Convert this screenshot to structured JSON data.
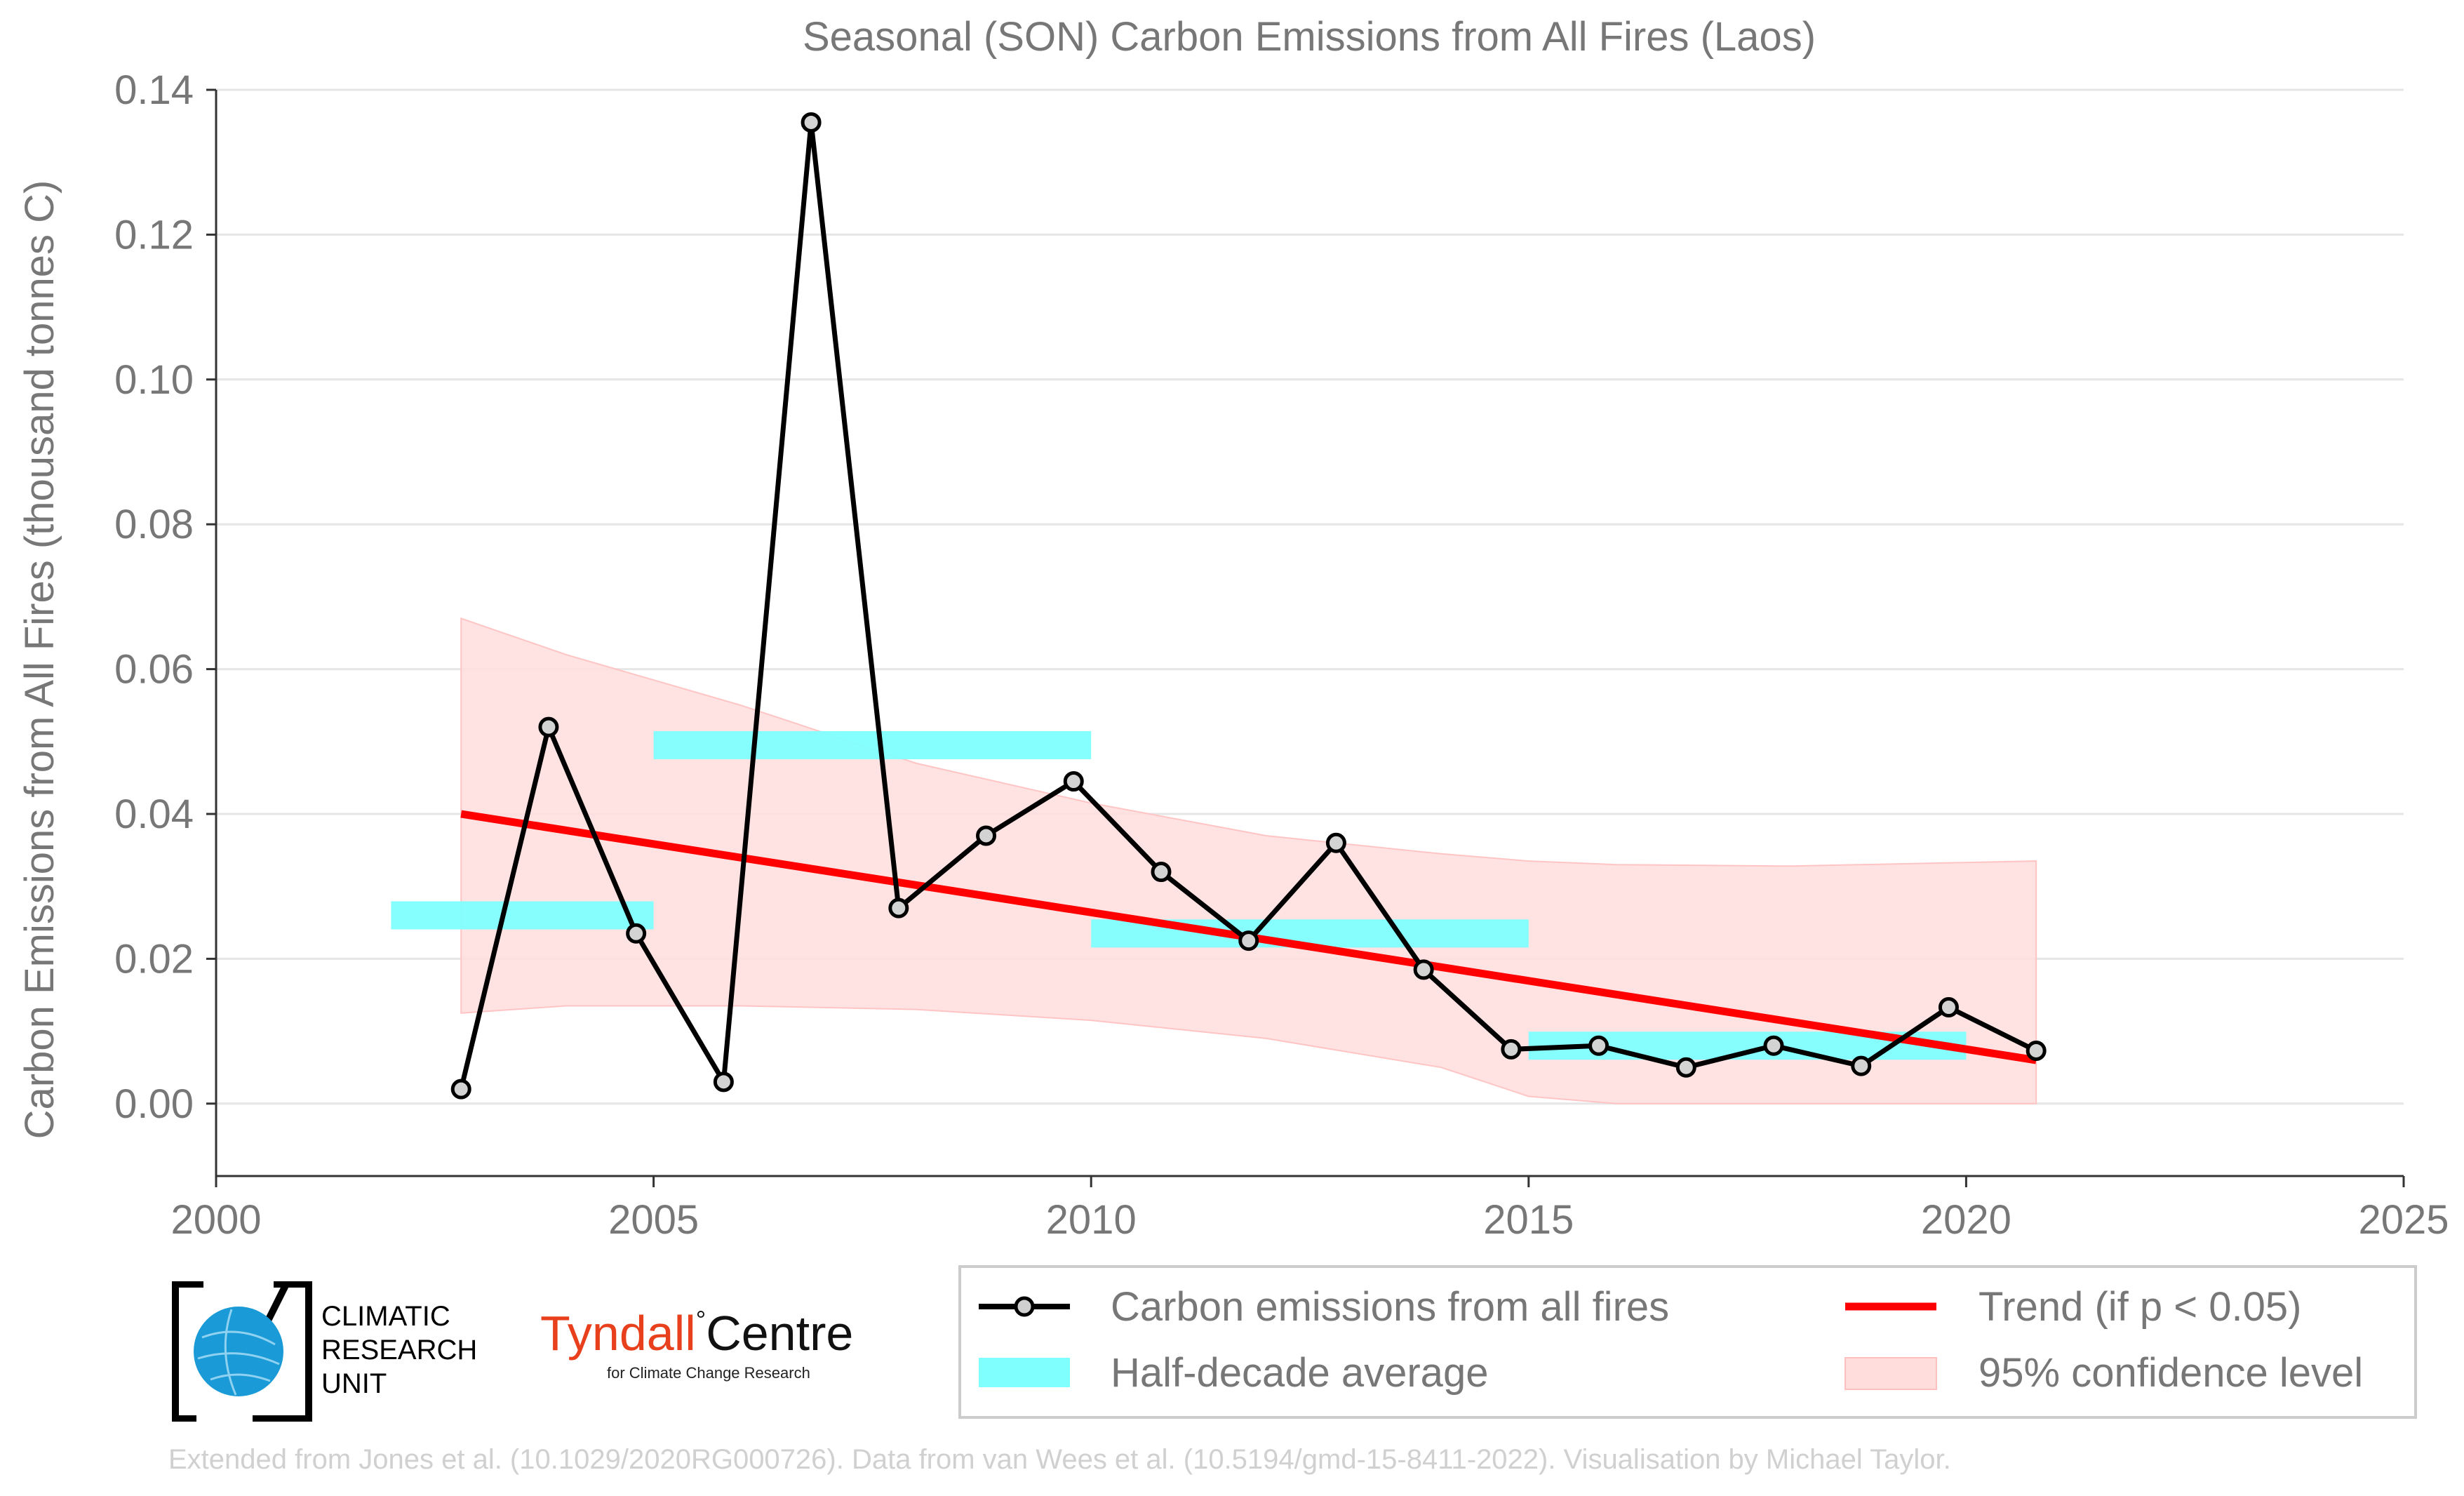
{
  "chart_data": {
    "type": "line",
    "title": "Seasonal (SON) Carbon Emissions from All Fires (Laos)",
    "ylabel": "Carbon Emissions from All Fires (thousand tonnes C)",
    "xlabel": "",
    "xlim": [
      2000,
      2025
    ],
    "ylim": [
      -0.01,
      0.14
    ],
    "x_ticks": [
      "2000",
      "2005",
      "2010",
      "2015",
      "2020",
      "2025"
    ],
    "y_ticks": [
      "0.00",
      "0.02",
      "0.04",
      "0.06",
      "0.08",
      "0.10",
      "0.12",
      "0.14"
    ],
    "grid": true,
    "series": [
      {
        "name": "Carbon emissions from all fires",
        "color": "#000000",
        "x": [
          2002.8,
          2003.8,
          2004.8,
          2005.8,
          2006.8,
          2007.8,
          2008.8,
          2009.8,
          2010.8,
          2011.8,
          2012.8,
          2013.8,
          2014.8,
          2015.8,
          2016.8,
          2017.8,
          2018.8,
          2019.8,
          2020.8
        ],
        "y": [
          0.002,
          0.052,
          0.0235,
          0.003,
          0.1355,
          0.027,
          0.037,
          0.0445,
          0.032,
          0.0225,
          0.036,
          0.0185,
          0.0075,
          0.008,
          0.005,
          0.008,
          0.0052,
          0.0133,
          0.0073
        ]
      }
    ],
    "half_decade_average": {
      "name": "Half-decade average",
      "color": "#80ffff",
      "segments": [
        {
          "x0": 2002,
          "x1": 2005,
          "y": 0.026
        },
        {
          "x0": 2005,
          "x1": 2010,
          "y": 0.0495
        },
        {
          "x0": 2010,
          "x1": 2015,
          "y": 0.0235
        },
        {
          "x0": 2015,
          "x1": 2020,
          "y": 0.008
        }
      ]
    },
    "trend": {
      "name": "Trend (if p < 0.05)",
      "color": "#ff0000",
      "x": [
        2002.8,
        2020.8
      ],
      "y": [
        0.04,
        0.006
      ]
    },
    "confidence_band": {
      "name": "95% confidence level",
      "color": "#ffdddd",
      "x": [
        2002.8,
        2004,
        2006,
        2008,
        2010,
        2012,
        2014,
        2015,
        2016,
        2018,
        2020.8
      ],
      "upper": [
        0.067,
        0.062,
        0.055,
        0.047,
        0.0415,
        0.037,
        0.0345,
        0.0335,
        0.033,
        0.0328,
        0.0335
      ],
      "lower": [
        0.0125,
        0.0135,
        0.0135,
        0.013,
        0.0115,
        0.009,
        0.005,
        0.001,
        0.0,
        0.0,
        0.0
      ]
    },
    "legend_position": "bottom-right"
  },
  "legend": {
    "items": [
      {
        "label": "Carbon emissions from all fires"
      },
      {
        "label": "Trend (if p < 0.05)"
      },
      {
        "label": "Half-decade average"
      },
      {
        "label": "95% confidence level"
      }
    ]
  },
  "logos": {
    "cru_lines": [
      "CLIMATIC",
      "RESEARCH",
      "UNIT"
    ],
    "tyndall_main_a": "Tyndall",
    "tyndall_main_b": "Centre",
    "tyndall_sub": "for Climate Change Research"
  },
  "credit": "Extended from Jones et al. (10.1029/2020RG000726). Data from van Wees et al. (10.5194/gmd-15-8411-2022). Visualisation by Michael Taylor."
}
